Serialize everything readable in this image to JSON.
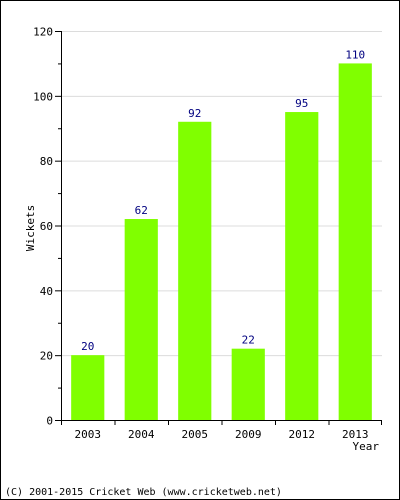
{
  "chart_data": {
    "type": "bar",
    "categories": [
      "2003",
      "2004",
      "2005",
      "2009",
      "2012",
      "2013"
    ],
    "values": [
      20,
      62,
      92,
      22,
      95,
      110
    ],
    "ylabel": "Wickets",
    "xlabel": "Year",
    "ylim": [
      0,
      120
    ],
    "yticks": [
      0,
      20,
      40,
      60,
      80,
      100,
      120
    ],
    "grid": true,
    "bar_color": "#80ff00",
    "label_color": "#000080"
  },
  "footer": {
    "copyright": "(C) 2001-2015 Cricket Web (www.cricketweb.net)"
  }
}
